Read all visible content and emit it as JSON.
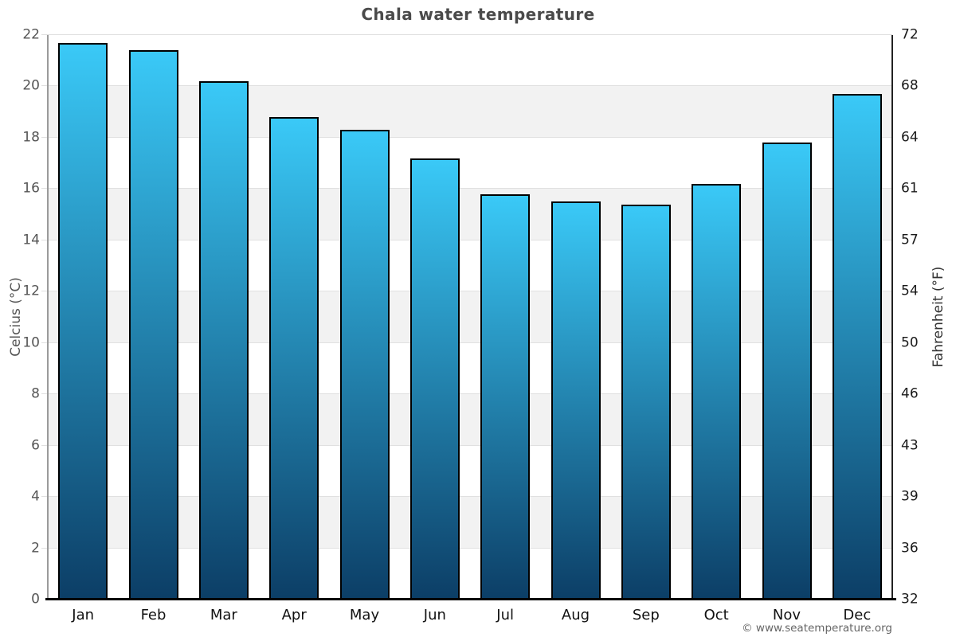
{
  "chart_data": {
    "type": "bar",
    "title": "Chala water temperature",
    "categories": [
      "Jan",
      "Feb",
      "Mar",
      "Apr",
      "May",
      "Jun",
      "Jul",
      "Aug",
      "Sep",
      "Oct",
      "Nov",
      "Dec"
    ],
    "values": [
      21.7,
      21.4,
      20.2,
      18.8,
      18.3,
      17.2,
      15.8,
      15.5,
      15.4,
      16.2,
      17.8,
      19.7
    ],
    "unit": "°C",
    "ylabel_left": "Celcius (°C)",
    "ylabel_right": "Fahrenheit (°F)",
    "ylim_celsius": [
      0,
      22
    ],
    "yticks_celsius": [
      0,
      2,
      4,
      6,
      8,
      10,
      12,
      14,
      16,
      18,
      20,
      22
    ],
    "yticks_fahrenheit": [
      32,
      36,
      39,
      43,
      46,
      50,
      54,
      57,
      61,
      64,
      68,
      72
    ],
    "grid": "alternating horizontal bands every 2°C, light gray on odd bands",
    "legend": "none"
  },
  "footer": {
    "copyright": "© www.seatemperature.org"
  },
  "colors": {
    "bar_top": "#3ac9f7",
    "bar_bottom": "#0c3e66",
    "bar_border": "#000000",
    "band_gray": "#f2f2f2",
    "gridline": "#e0e0e0",
    "axis_left_line": "#9a9a9a",
    "axis_right_line": "#222222",
    "axis_bottom_line": "#000000",
    "title_text": "#4a4a4a",
    "left_axis_text": "#555555",
    "right_axis_text": "#1a1a1a",
    "month_text": "#111111",
    "copyright_text": "#666666"
  }
}
